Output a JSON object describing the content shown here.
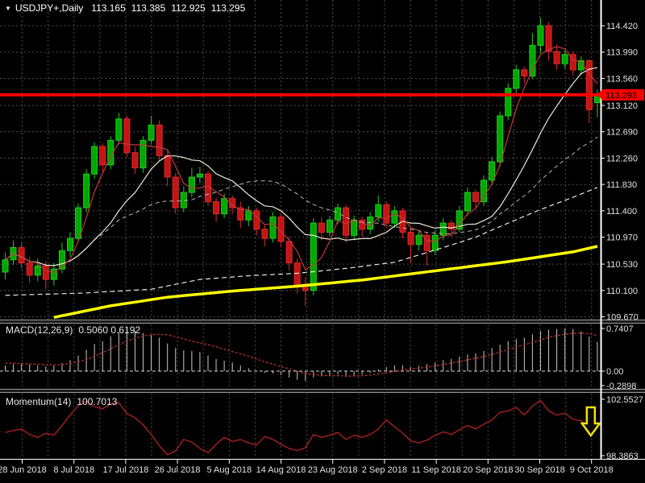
{
  "window": {
    "symbol_period": "USDJPY+,Daily",
    "quote": {
      "open": "113.165",
      "high": "113.385",
      "low": "112.925",
      "close": "113.295"
    }
  },
  "colors": {
    "background": "#000000",
    "grid": "#4E4E4E",
    "axis_text": "#E2E2E2",
    "frame": "#FFFFFF",
    "separator": "#9A9A9A",
    "candle_up": "#00A800",
    "candle_up_border": "#22CC22",
    "candle_down": "#C41414",
    "candle_down_border": "#DD2A2A",
    "ma_fast": "#C23A3A",
    "ma_mid": "#EFE8D6",
    "ma_slow": "#B9B9B9",
    "ma_long": "#E8E8E8",
    "ma_trend": "#FFFF00",
    "hline": "#FF0000",
    "hline_tag_text": "#000000",
    "macd_hist": "#C8C8C8",
    "macd_signal": "#B03030",
    "momentum_line": "#B22222",
    "arrow": "#F0E014"
  },
  "chart_data": {
    "type": "candlestick",
    "title": "USDJPY+,Daily  113.165 113.385 112.925 113.295",
    "symbol": "USDJPY+",
    "timeframe": "Daily",
    "x_labels": [
      "28 Jun 2018",
      "8 Jul 2018",
      "17 Jul 2018",
      "26 Jul 2018",
      "5 Aug 2018",
      "14 Aug 2018",
      "23 Aug 2018",
      "2 Sep 2018",
      "11 Sep 2018",
      "20 Sep 2018",
      "30 Sep 2018",
      "9 Oct 2018"
    ],
    "price_axis_ticks": [
      "114.420",
      "113.990",
      "113.560",
      "113.120",
      "112.690",
      "112.260",
      "111.830",
      "111.400",
      "110.970",
      "110.530",
      "110.100",
      "109.670"
    ],
    "ylim": [
      109.55,
      114.62
    ],
    "horizontal_line": {
      "price": 113.293,
      "label": "113.293"
    },
    "candles": [
      [
        110.4,
        110.72,
        110.28,
        110.6
      ],
      [
        110.6,
        110.92,
        110.52,
        110.8
      ],
      [
        110.8,
        110.88,
        110.45,
        110.55
      ],
      [
        110.55,
        110.65,
        110.22,
        110.35
      ],
      [
        110.35,
        110.62,
        110.25,
        110.5
      ],
      [
        110.5,
        110.58,
        110.12,
        110.28
      ],
      [
        110.28,
        110.55,
        110.18,
        110.45
      ],
      [
        110.45,
        110.88,
        110.38,
        110.75
      ],
      [
        110.75,
        111.05,
        110.65,
        110.95
      ],
      [
        110.95,
        111.52,
        110.88,
        111.45
      ],
      [
        111.45,
        112.08,
        111.38,
        112.0
      ],
      [
        112.0,
        112.52,
        111.92,
        112.45
      ],
      [
        112.45,
        112.5,
        112.02,
        112.15
      ],
      [
        112.15,
        112.62,
        112.08,
        112.55
      ],
      [
        112.55,
        113.0,
        112.48,
        112.9
      ],
      [
        112.9,
        112.95,
        112.28,
        112.35
      ],
      [
        112.35,
        112.45,
        112.0,
        112.1
      ],
      [
        112.1,
        112.62,
        112.02,
        112.55
      ],
      [
        112.55,
        112.95,
        112.48,
        112.8
      ],
      [
        112.8,
        112.88,
        112.22,
        112.3
      ],
      [
        112.3,
        112.38,
        111.8,
        111.95
      ],
      [
        111.95,
        112.02,
        111.35,
        111.45
      ],
      [
        111.45,
        111.8,
        111.38,
        111.7
      ],
      [
        111.7,
        112.1,
        111.62,
        111.95
      ],
      [
        111.95,
        112.12,
        111.85,
        112.0
      ],
      [
        112.0,
        112.05,
        111.48,
        111.55
      ],
      [
        111.55,
        111.62,
        111.22,
        111.35
      ],
      [
        111.35,
        111.68,
        111.28,
        111.6
      ],
      [
        111.6,
        111.65,
        111.35,
        111.45
      ],
      [
        111.45,
        111.55,
        111.12,
        111.25
      ],
      [
        111.25,
        111.48,
        111.15,
        111.4
      ],
      [
        111.4,
        111.45,
        111.0,
        111.1
      ],
      [
        111.1,
        111.18,
        110.82,
        110.95
      ],
      [
        110.95,
        111.38,
        110.88,
        111.3
      ],
      [
        111.3,
        111.35,
        110.8,
        110.9
      ],
      [
        110.9,
        110.98,
        110.42,
        110.55
      ],
      [
        110.55,
        110.62,
        110.05,
        110.2
      ],
      [
        110.2,
        110.32,
        109.85,
        110.1
      ],
      [
        110.1,
        111.28,
        110.02,
        111.2
      ],
      [
        111.2,
        111.3,
        110.92,
        111.05
      ],
      [
        111.05,
        111.32,
        110.98,
        111.25
      ],
      [
        111.25,
        111.52,
        111.18,
        111.45
      ],
      [
        111.45,
        111.5,
        110.88,
        111.0
      ],
      [
        111.0,
        111.32,
        110.92,
        111.25
      ],
      [
        111.25,
        111.3,
        110.98,
        111.1
      ],
      [
        111.1,
        111.38,
        111.02,
        111.3
      ],
      [
        111.3,
        111.65,
        111.22,
        111.5
      ],
      [
        111.5,
        111.55,
        111.12,
        111.2
      ],
      [
        111.2,
        111.48,
        111.12,
        111.4
      ],
      [
        111.4,
        111.45,
        110.95,
        111.05
      ],
      [
        111.05,
        111.12,
        110.55,
        110.85
      ],
      [
        110.85,
        111.08,
        110.75,
        111.0
      ],
      [
        111.0,
        111.05,
        110.5,
        110.75
      ],
      [
        110.75,
        111.08,
        110.68,
        111.0
      ],
      [
        111.0,
        111.28,
        110.92,
        111.2
      ],
      [
        111.2,
        111.25,
        110.98,
        111.1
      ],
      [
        111.1,
        111.48,
        111.05,
        111.4
      ],
      [
        111.4,
        111.78,
        111.32,
        111.7
      ],
      [
        111.7,
        111.75,
        111.45,
        111.55
      ],
      [
        111.55,
        111.98,
        111.48,
        111.9
      ],
      [
        111.9,
        112.28,
        111.82,
        112.2
      ],
      [
        112.2,
        113.02,
        112.12,
        112.95
      ],
      [
        112.95,
        113.48,
        112.88,
        113.4
      ],
      [
        113.4,
        113.78,
        113.32,
        113.7
      ],
      [
        113.7,
        113.75,
        113.48,
        113.6
      ],
      [
        113.6,
        114.3,
        113.55,
        114.1
      ],
      [
        114.1,
        114.55,
        113.98,
        114.42
      ],
      [
        114.42,
        114.48,
        113.85,
        114.0
      ],
      [
        114.0,
        114.12,
        113.7,
        113.8
      ],
      [
        113.8,
        114.02,
        113.72,
        113.95
      ],
      [
        113.95,
        114.0,
        113.6,
        113.7
      ],
      [
        113.7,
        113.92,
        113.62,
        113.85
      ],
      [
        113.85,
        113.88,
        112.83,
        113.05
      ],
      [
        113.165,
        113.385,
        112.925,
        113.295
      ]
    ],
    "overlays": {
      "ma_fast": {
        "window": 4,
        "style": "solid"
      },
      "ma_mid": {
        "window": 12,
        "style": "solid"
      },
      "ma_slow": {
        "window": 24,
        "style": "dashed"
      },
      "ma_long": {
        "style": "dashed",
        "points": [
          [
            0,
            110.02
          ],
          [
            10,
            110.06
          ],
          [
            18,
            110.12
          ],
          [
            24,
            110.28
          ],
          [
            30,
            110.34
          ],
          [
            36,
            110.38
          ],
          [
            42,
            110.46
          ],
          [
            48,
            110.56
          ],
          [
            54,
            110.8
          ],
          [
            58,
            110.97
          ],
          [
            62,
            111.2
          ],
          [
            66,
            111.42
          ],
          [
            70,
            111.62
          ],
          [
            73,
            111.78
          ]
        ]
      },
      "ma_trend": {
        "style": "thick",
        "points": [
          [
            6,
            109.66
          ],
          [
            13,
            109.85
          ],
          [
            20,
            109.99
          ],
          [
            28,
            110.09
          ],
          [
            36,
            110.17
          ],
          [
            44,
            110.27
          ],
          [
            50,
            110.37
          ],
          [
            56,
            110.47
          ],
          [
            62,
            110.57
          ],
          [
            67,
            110.67
          ],
          [
            70,
            110.73
          ],
          [
            73,
            110.82
          ]
        ]
      }
    },
    "indicators": [
      {
        "name": "MACD",
        "label": "MACD(12,26,9)",
        "values_text": "0.5060 0.6192",
        "axis_ticks": [
          "0.7407",
          "0.00",
          "-0.2898"
        ],
        "histogram": [
          0.1,
          0.12,
          0.13,
          0.12,
          0.1,
          0.08,
          0.1,
          0.14,
          0.19,
          0.27,
          0.37,
          0.47,
          0.52,
          0.6,
          0.68,
          0.72,
          0.7,
          0.66,
          0.63,
          0.58,
          0.48,
          0.4,
          0.36,
          0.35,
          0.33,
          0.27,
          0.21,
          0.18,
          0.15,
          0.1,
          0.05,
          0.01,
          -0.03,
          -0.04,
          -0.07,
          -0.11,
          -0.15,
          -0.17,
          -0.11,
          -0.09,
          -0.08,
          -0.06,
          -0.1,
          -0.08,
          -0.06,
          -0.03,
          0.03,
          0.07,
          0.1,
          0.1,
          0.07,
          0.09,
          0.12,
          0.15,
          0.19,
          0.21,
          0.25,
          0.29,
          0.31,
          0.35,
          0.4,
          0.46,
          0.52,
          0.56,
          0.58,
          0.64,
          0.7,
          0.72,
          0.73,
          0.74,
          0.73,
          0.69,
          0.6,
          0.506
        ],
        "signal": [
          0.14,
          0.135,
          0.13,
          0.125,
          0.12,
          0.115,
          0.11,
          0.115,
          0.13,
          0.16,
          0.2,
          0.26,
          0.32,
          0.39,
          0.46,
          0.52,
          0.57,
          0.61,
          0.63,
          0.64,
          0.63,
          0.6,
          0.56,
          0.52,
          0.49,
          0.46,
          0.42,
          0.38,
          0.34,
          0.3,
          0.26,
          0.21,
          0.16,
          0.12,
          0.08,
          0.04,
          0.0,
          -0.04,
          -0.06,
          -0.075,
          -0.08,
          -0.08,
          -0.085,
          -0.085,
          -0.08,
          -0.07,
          -0.05,
          -0.03,
          -0.005,
          0.02,
          0.04,
          0.05,
          0.07,
          0.09,
          0.115,
          0.14,
          0.165,
          0.195,
          0.225,
          0.255,
          0.29,
          0.33,
          0.375,
          0.42,
          0.455,
          0.5,
          0.545,
          0.585,
          0.615,
          0.64,
          0.655,
          0.66,
          0.65,
          0.6192
        ]
      },
      {
        "name": "Momentum",
        "label": "Momentum(14)",
        "values_text": "100.7013",
        "axis_ticks": [
          "102.5527",
          "98.3863"
        ],
        "values": [
          100.05,
          100.2,
          100.3,
          99.9,
          99.7,
          100.0,
          99.85,
          100.55,
          101.3,
          102.0,
          102.3,
          101.9,
          101.75,
          102.1,
          102.2,
          101.4,
          101.1,
          100.6,
          99.9,
          99.1,
          98.45,
          98.75,
          99.55,
          99.35,
          98.9,
          98.6,
          99.2,
          99.7,
          99.4,
          99.55,
          99.3,
          99.15,
          99.75,
          99.55,
          99.2,
          98.9,
          98.75,
          98.95,
          99.9,
          99.7,
          99.85,
          100.05,
          99.55,
          99.85,
          99.7,
          99.9,
          100.3,
          100.95,
          100.45,
          100.0,
          99.45,
          99.3,
          99.5,
          99.85,
          100.1,
          99.9,
          100.25,
          100.55,
          100.3,
          100.65,
          100.95,
          101.5,
          101.6,
          101.85,
          101.3,
          101.95,
          102.35,
          101.6,
          101.3,
          101.45,
          101.0,
          100.9,
          100.45,
          100.7013
        ],
        "arrow": {
          "direction": "down",
          "index": 72
        }
      }
    ]
  }
}
